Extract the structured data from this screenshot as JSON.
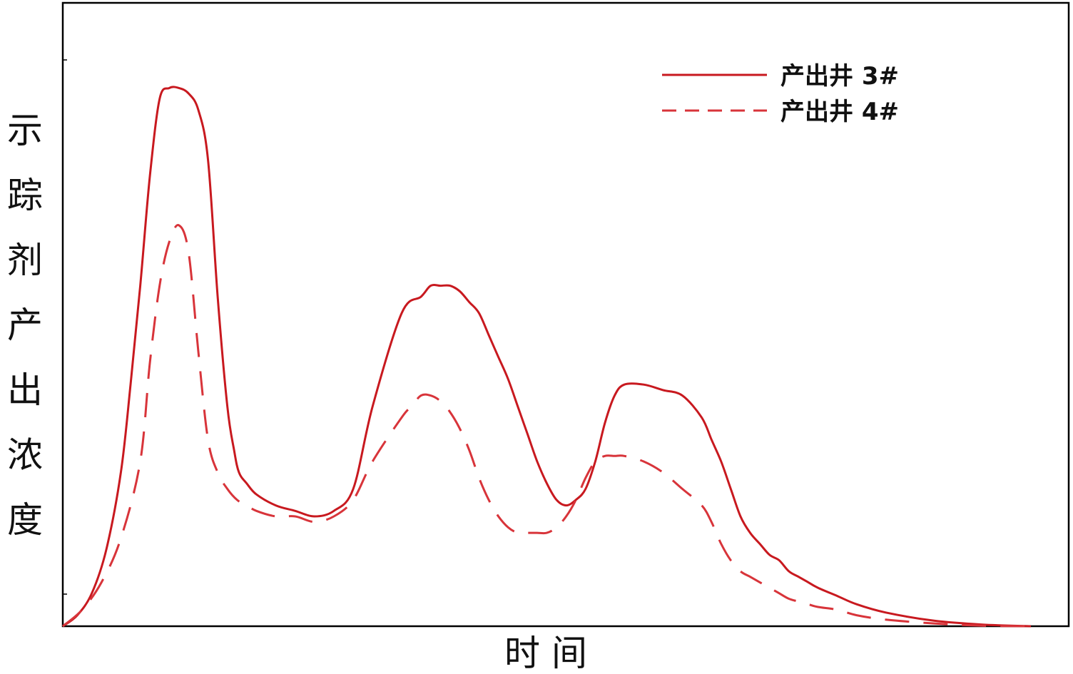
{
  "chart_data": {
    "type": "line",
    "title": "",
    "xlabel": "时 间",
    "ylabel": "示踪剂产出浓度",
    "xlim": [
      0,
      100
    ],
    "ylim": [
      0,
      100
    ],
    "grid": false,
    "x_ticks_labeled": false,
    "y_ticks_labeled": false,
    "legend": {
      "placement": "top-right"
    },
    "series": [
      {
        "name": "产出井 3#",
        "style": "solid",
        "color": "#c8191f",
        "x": [
          0,
          1.5,
          3,
          4.5,
          6,
          7,
          8,
          9,
          10,
          11,
          12,
          13,
          14,
          15,
          16,
          17,
          17.7,
          18.2,
          19,
          20,
          22,
          24,
          26,
          28,
          30,
          32,
          35,
          37,
          38,
          39,
          40,
          41,
          42,
          43,
          44,
          45,
          46,
          47,
          48,
          49,
          50,
          51,
          52,
          53,
          54,
          55,
          56,
          57,
          58,
          60,
          62,
          64,
          66,
          67,
          68,
          69,
          70,
          71,
          72,
          73,
          74,
          75,
          76,
          77,
          78,
          80,
          82,
          85,
          90,
          95,
          100
        ],
        "y": [
          0,
          2,
          6,
          14,
          28,
          44,
          62,
          82,
          96,
          98,
          98,
          97,
          94,
          85,
          60,
          40,
          32,
          28,
          26,
          24,
          22,
          21,
          20,
          21,
          25,
          40,
          57,
          60,
          62,
          62,
          62,
          61,
          59,
          57,
          53,
          49,
          45,
          40,
          35,
          30,
          26,
          23,
          22,
          23,
          25,
          30,
          37,
          42,
          44,
          44,
          43,
          42,
          38,
          34,
          30,
          25,
          20,
          17,
          15,
          13,
          12,
          10,
          9,
          8,
          7,
          5.5,
          4,
          2.5,
          1,
          0.3,
          0
        ]
      },
      {
        "name": "产出井 4#",
        "style": "dashed",
        "color": "#d8343a",
        "x": [
          0,
          2,
          4,
          6,
          8,
          9,
          10,
          11,
          12,
          13,
          14,
          15,
          16,
          17,
          18,
          19,
          20,
          22,
          24,
          26,
          28,
          30,
          32,
          35,
          36,
          37,
          38,
          39,
          40,
          41,
          42,
          43,
          44,
          45,
          46,
          47,
          48,
          49,
          50,
          51,
          52,
          53,
          54,
          55,
          56,
          57,
          58,
          60,
          62,
          64,
          66,
          67,
          68,
          69,
          70,
          71,
          72,
          73,
          74,
          75,
          76,
          77,
          78,
          80,
          82,
          85,
          90,
          95,
          100
        ],
        "y": [
          0,
          3,
          8,
          16,
          30,
          48,
          62,
          70,
          73,
          68,
          50,
          34,
          28,
          25,
          23,
          22,
          21,
          20,
          20,
          19,
          20,
          23,
          30,
          38,
          40,
          42,
          42,
          41,
          39,
          36,
          32,
          27,
          23,
          20,
          18,
          17,
          17,
          17,
          17,
          18,
          20,
          23,
          27,
          30,
          31,
          31,
          31,
          30,
          28,
          25,
          22,
          19,
          15,
          12,
          10,
          9,
          8,
          7,
          6,
          5,
          4.5,
          4,
          3.5,
          3,
          2,
          1.2,
          0.5,
          0.1,
          0
        ]
      }
    ]
  }
}
